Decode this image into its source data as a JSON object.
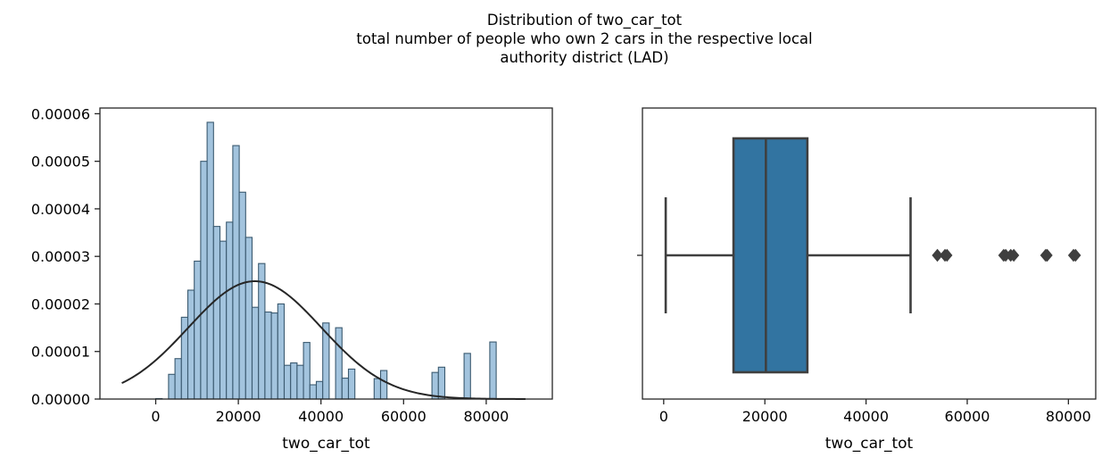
{
  "suptitle": {
    "line1": "Distribution of two_car_tot",
    "line2": "total number of people who own 2 cars in the respective local",
    "line3": "authority district (LAD)"
  },
  "colors": {
    "hist_fill": "#a3c4de",
    "hist_edge": "#3b5a70",
    "kde_line": "#262626",
    "box_fill": "#3274a1",
    "box_line": "#3f3f3f",
    "axes": "#262626"
  },
  "chart_data": [
    {
      "type": "bar",
      "subtype": "histogram-with-density-curve",
      "xlabel": "two_car_tot",
      "ylabel": "",
      "xlim": [
        -13500,
        96000
      ],
      "ylim": [
        0,
        6.12e-05
      ],
      "xticks": [
        0,
        20000,
        40000,
        60000,
        80000
      ],
      "xtick_labels": [
        "0",
        "20000",
        "40000",
        "60000",
        "80000"
      ],
      "yticks": [
        0,
        1e-05,
        2e-05,
        3e-05,
        4e-05,
        5e-05,
        6e-05
      ],
      "ytick_labels": [
        "0.00000",
        "0.00001",
        "0.00002",
        "0.00003",
        "0.00004",
        "0.00005",
        "0.00006"
      ],
      "bin_width": 1555,
      "bins": [
        {
          "x0": 0,
          "x1": 1555,
          "value": 1e-07
        },
        {
          "x0": 3110,
          "x1": 4665,
          "value": 5.2e-06
        },
        {
          "x0": 4665,
          "x1": 6220,
          "value": 8.5e-06
        },
        {
          "x0": 6220,
          "x1": 7775,
          "value": 1.72e-05
        },
        {
          "x0": 7775,
          "x1": 9330,
          "value": 2.29e-05
        },
        {
          "x0": 9330,
          "x1": 10885,
          "value": 2.9e-05
        },
        {
          "x0": 10885,
          "x1": 12440,
          "value": 5e-05
        },
        {
          "x0": 12440,
          "x1": 13995,
          "value": 5.82e-05
        },
        {
          "x0": 13995,
          "x1": 15550,
          "value": 3.63e-05
        },
        {
          "x0": 15550,
          "x1": 17105,
          "value": 3.32e-05
        },
        {
          "x0": 17105,
          "x1": 18660,
          "value": 3.72e-05
        },
        {
          "x0": 18660,
          "x1": 20215,
          "value": 5.33e-05
        },
        {
          "x0": 20215,
          "x1": 21770,
          "value": 4.35e-05
        },
        {
          "x0": 21770,
          "x1": 23325,
          "value": 3.4e-05
        },
        {
          "x0": 23325,
          "x1": 24880,
          "value": 1.93e-05
        },
        {
          "x0": 24880,
          "x1": 26435,
          "value": 2.85e-05
        },
        {
          "x0": 26435,
          "x1": 27990,
          "value": 1.83e-05
        },
        {
          "x0": 27990,
          "x1": 29545,
          "value": 1.81e-05
        },
        {
          "x0": 29545,
          "x1": 31100,
          "value": 2e-05
        },
        {
          "x0": 31100,
          "x1": 32655,
          "value": 7.1e-06
        },
        {
          "x0": 32655,
          "x1": 34210,
          "value": 7.6e-06
        },
        {
          "x0": 34210,
          "x1": 35765,
          "value": 7.1e-06
        },
        {
          "x0": 35765,
          "x1": 37320,
          "value": 1.19e-05
        },
        {
          "x0": 37320,
          "x1": 38875,
          "value": 3e-06
        },
        {
          "x0": 38875,
          "x1": 40430,
          "value": 3.7e-06
        },
        {
          "x0": 40430,
          "x1": 41985,
          "value": 1.6e-05
        },
        {
          "x0": 43540,
          "x1": 45095,
          "value": 1.5e-05
        },
        {
          "x0": 45095,
          "x1": 46650,
          "value": 4.4e-06
        },
        {
          "x0": 46650,
          "x1": 48205,
          "value": 6.3e-06
        },
        {
          "x0": 52870,
          "x1": 54425,
          "value": 4.3e-06
        },
        {
          "x0": 54425,
          "x1": 55980,
          "value": 6e-06
        },
        {
          "x0": 66865,
          "x1": 68420,
          "value": 5.6e-06
        },
        {
          "x0": 68420,
          "x1": 69975,
          "value": 6.7e-06
        },
        {
          "x0": 74640,
          "x1": 76195,
          "value": 9.6e-06
        },
        {
          "x0": 80860,
          "x1": 82415,
          "value": 1.2e-05
        }
      ],
      "density_curve": {
        "type": "normal",
        "mean": 24000,
        "sd": 16100,
        "x_range": [
          -8200,
          89500
        ]
      }
    },
    {
      "type": "boxplot",
      "orientation": "horizontal",
      "xlabel": "two_car_tot",
      "ylabel": "",
      "xlim": [
        -4200,
        85400
      ],
      "xticks": [
        0,
        20000,
        40000,
        60000,
        80000
      ],
      "xtick_labels": [
        "0",
        "20000",
        "40000",
        "60000",
        "80000"
      ],
      "whisker_low": 400,
      "q1": 13800,
      "median": 20200,
      "q3": 28400,
      "whisker_high": 48800,
      "outliers": [
        54100,
        55600,
        56000,
        67200,
        67600,
        68600,
        69200,
        75500,
        75800,
        81000,
        81400
      ]
    }
  ]
}
